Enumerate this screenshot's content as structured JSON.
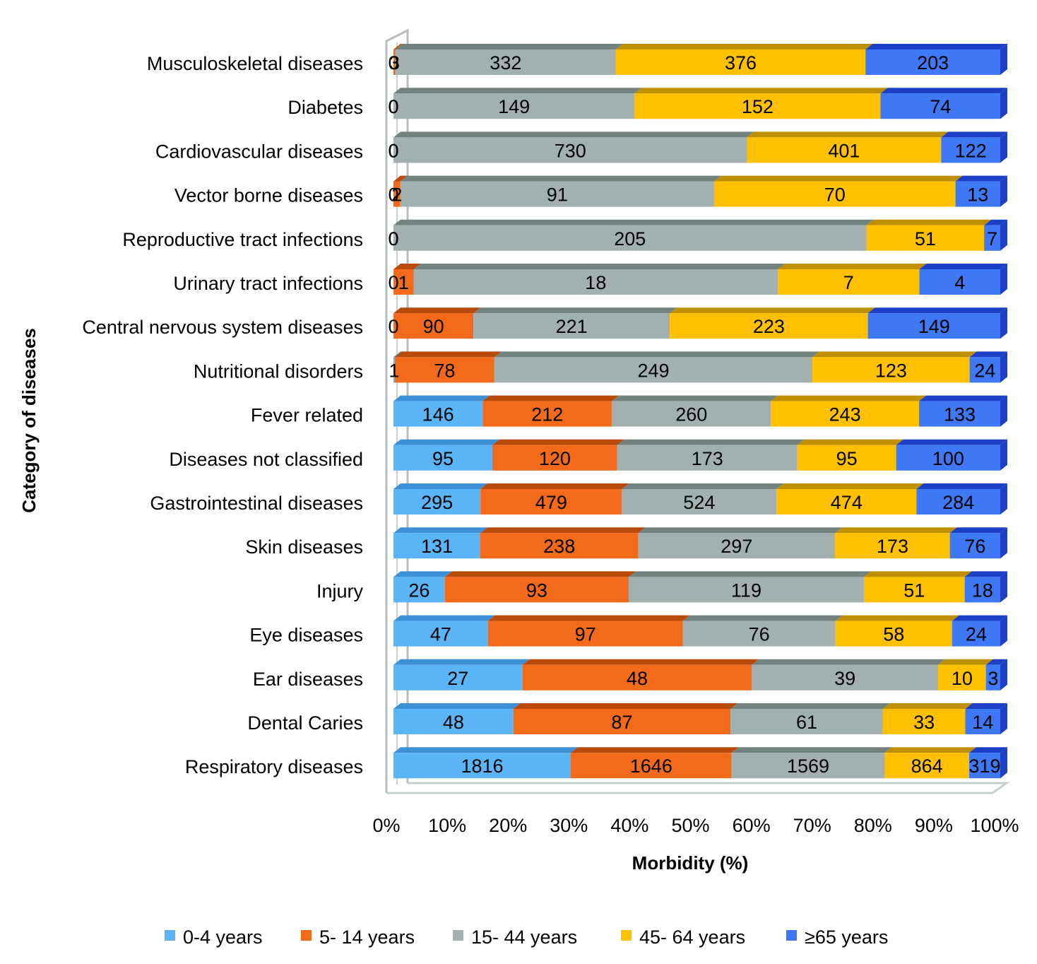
{
  "chart_data": {
    "type": "bar",
    "orientation": "horizontal",
    "stacked": "percent",
    "style": "3d",
    "title": "",
    "xlabel": "Morbidity (%)",
    "ylabel": "Category of diseases",
    "xlim": [
      0,
      100
    ],
    "xticks": [
      "0%",
      "10%",
      "20%",
      "30%",
      "40%",
      "50%",
      "60%",
      "70%",
      "80%",
      "90%",
      "100%"
    ],
    "gridlines": false,
    "legend_position": "bottom",
    "categories": [
      "Musculoskeletal diseases",
      "Diabetes",
      "Cardiovascular diseases",
      "Vector borne diseases",
      "Reproductive tract infections",
      "Urinary tract infections",
      "Central nervous system diseases",
      "Nutritional disorders",
      "Fever related",
      "Diseases not classified",
      "Gastrointestinal diseases",
      "Skin diseases",
      "Injury",
      "Eye diseases",
      "Ear diseases",
      "Dental Caries ",
      "Respiratory diseases"
    ],
    "series": [
      {
        "name": "0-4 years",
        "color": "#5BB4F5",
        "top_color": "#3D8FD6",
        "values": [
          0,
          0,
          0,
          0,
          0,
          0,
          0,
          1,
          146,
          95,
          295,
          131,
          26,
          47,
          27,
          48,
          1816
        ]
      },
      {
        "name": "5- 14 years",
        "color": "#F36A1A",
        "top_color": "#B84A0A",
        "values": [
          3,
          0,
          0,
          2,
          0,
          1,
          90,
          78,
          212,
          120,
          479,
          238,
          93,
          97,
          48,
          87,
          1646
        ]
      },
      {
        "name": "15- 44 years",
        "color": "#A2B0AF",
        "top_color": "#74827F",
        "values": [
          332,
          149,
          730,
          91,
          205,
          18,
          221,
          249,
          260,
          173,
          524,
          297,
          119,
          76,
          39,
          61,
          1569
        ]
      },
      {
        "name": "45- 64 years",
        "color": "#FFC000",
        "top_color": "#BE9000",
        "values": [
          376,
          152,
          401,
          70,
          51,
          7,
          223,
          123,
          243,
          95,
          474,
          173,
          51,
          58,
          10,
          33,
          864
        ]
      },
      {
        "name": "≥65 years",
        "color": "#3F78F4",
        "top_color": "#1C3FC8",
        "values": [
          203,
          74,
          122,
          13,
          7,
          4,
          149,
          24,
          133,
          100,
          284,
          76,
          18,
          24,
          3,
          14,
          319
        ]
      }
    ]
  }
}
